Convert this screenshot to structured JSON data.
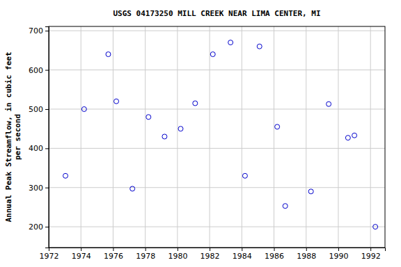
{
  "chart_data": {
    "type": "scatter",
    "title": "USGS 04173250 MILL CREEK NEAR LIMA CENTER, MI",
    "y_label": [
      "Annual Peak Streamflow, in cubic feet",
      "per second"
    ],
    "x": [
      1973.04,
      1974.2,
      1975.7,
      1976.2,
      1977.2,
      1978.2,
      1979.2,
      1980.2,
      1981.1,
      1982.2,
      1983.3,
      1984.2,
      1985.1,
      1986.2,
      1986.7,
      1988.3,
      1989.4,
      1990.6,
      1991.0,
      1992.3
    ],
    "values": [
      330,
      500,
      640,
      520,
      297,
      480,
      430,
      450,
      515,
      640,
      670,
      330,
      660,
      455,
      253,
      290,
      513,
      427,
      433,
      200
    ],
    "color": "#0000cc",
    "marker": "circle-open",
    "xlim": [
      1972,
      1992.9
    ],
    "ylim": [
      147,
      711
    ],
    "xticks": [
      1972,
      1974,
      1976,
      1978,
      1980,
      1982,
      1984,
      1986,
      1988,
      1990,
      1992
    ],
    "yticks": [
      200,
      300,
      400,
      500,
      600,
      700
    ],
    "grid": true
  }
}
